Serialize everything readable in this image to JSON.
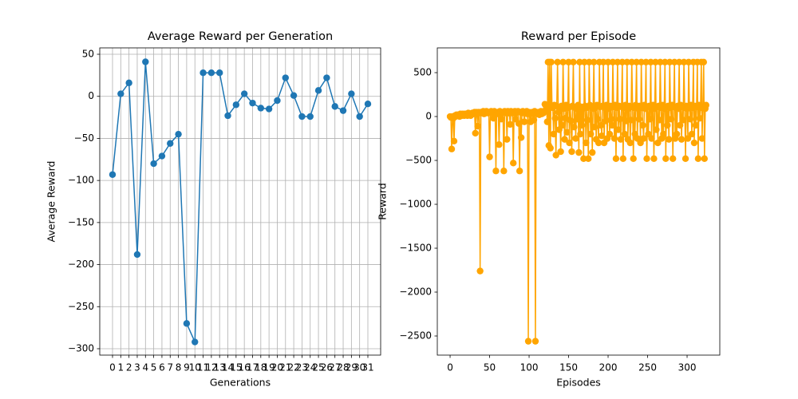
{
  "chart_data": [
    {
      "type": "line",
      "title": "Average Reward per Generation",
      "x_label": "Generations",
      "y_label": "Average Reward",
      "x": [
        0,
        1,
        2,
        3,
        4,
        5,
        6,
        7,
        8,
        9,
        10,
        11,
        12,
        13,
        14,
        15,
        16,
        17,
        18,
        19,
        20,
        21,
        22,
        23,
        24,
        25,
        26,
        27,
        28,
        29,
        30,
        31
      ],
      "values": [
        -93,
        3,
        16,
        -188,
        41,
        -80,
        -71,
        -56,
        -45,
        -270,
        -292,
        28,
        28,
        28,
        -23,
        -10,
        3,
        -8,
        -14,
        -15,
        -5,
        22,
        1,
        -24,
        -24,
        7,
        22,
        -12,
        -17,
        3,
        -24,
        -9
      ],
      "color": "#1f77b4",
      "xlim": [
        -1.55,
        32.55
      ],
      "ylim": [
        -307.6,
        57.6
      ],
      "xticks": [
        0,
        1,
        2,
        3,
        4,
        5,
        6,
        7,
        8,
        9,
        10,
        11,
        12,
        13,
        14,
        15,
        16,
        17,
        18,
        19,
        20,
        21,
        22,
        23,
        24,
        25,
        26,
        27,
        28,
        29,
        30,
        31
      ],
      "yticks": [
        50,
        0,
        {
          "value": -50,
          "label": "−50"
        },
        {
          "value": -100,
          "label": "−100"
        },
        {
          "value": -150,
          "label": "−150"
        },
        {
          "value": -200,
          "label": "−200"
        },
        {
          "value": -250,
          "label": "−250"
        },
        {
          "value": -300,
          "label": "−300"
        }
      ],
      "grid": true
    },
    {
      "type": "line",
      "title": "Reward per Episode",
      "x_label": "Episodes",
      "y_label": "Reward",
      "values": [
        0,
        -10,
        -370,
        0,
        -20,
        -280,
        10,
        0,
        20,
        10,
        20,
        10,
        0,
        30,
        20,
        10,
        30,
        20,
        10,
        30,
        20,
        30,
        10,
        40,
        20,
        30,
        10,
        20,
        40,
        30,
        40,
        50,
        -190,
        50,
        40,
        -110,
        50,
        40,
        -1760,
        50,
        50,
        40,
        60,
        30,
        50,
        40,
        60,
        50,
        40,
        50,
        -460,
        50,
        60,
        40,
        50,
        -20,
        60,
        50,
        -620,
        40,
        50,
        30,
        -320,
        60,
        50,
        -30,
        40,
        50,
        -620,
        60,
        50,
        40,
        -260,
        60,
        40,
        50,
        -90,
        60,
        50,
        40,
        -530,
        50,
        60,
        -30,
        40,
        50,
        60,
        -80,
        -620,
        50,
        -240,
        40,
        60,
        50,
        -60,
        40,
        50,
        60,
        30,
        -2560,
        50,
        40,
        -60,
        30,
        50,
        40,
        -40,
        60,
        -2560,
        50,
        30,
        40,
        50,
        20,
        40,
        60,
        30,
        50,
        40,
        60,
        140,
        130,
        100,
        -60,
        620,
        -330,
        620,
        -360,
        620,
        120,
        100,
        -200,
        130,
        -20,
        -440,
        120,
        620,
        50,
        -150,
        100,
        -400,
        120,
        -100,
        620,
        90,
        -260,
        -20,
        130,
        -180,
        100,
        620,
        -300,
        110,
        -50,
        -400,
        120,
        620,
        -120,
        100,
        -250,
        90,
        -30,
        130,
        -410,
        620,
        -200,
        110,
        -100,
        90,
        -480,
        620,
        120,
        -300,
        100,
        -40,
        -480,
        620,
        130,
        -200,
        110,
        -410,
        90,
        620,
        -120,
        100,
        -260,
        130,
        -30,
        -300,
        620,
        110,
        -100,
        -220,
        120,
        620,
        -300,
        100,
        -50,
        130,
        -250,
        620,
        90,
        -200,
        120,
        -30,
        -100,
        620,
        110,
        -250,
        130,
        -480,
        100,
        620,
        -150,
        120,
        -30,
        -260,
        110,
        620,
        -480,
        100,
        -200,
        130,
        -50,
        620,
        -260,
        90,
        120,
        -300,
        -40,
        620,
        110,
        -480,
        100,
        -200,
        130,
        620,
        -250,
        90,
        -30,
        120,
        -300,
        620,
        100,
        -100,
        -250,
        130,
        90,
        620,
        -480,
        110,
        -200,
        120,
        -30,
        620,
        -250,
        100,
        130,
        -480,
        90,
        620,
        -150,
        110,
        -300,
        120,
        -40,
        620,
        100,
        -250,
        130,
        -200,
        90,
        620,
        -480,
        110,
        -100,
        120,
        -260,
        620,
        100,
        -30,
        130,
        -480,
        110,
        620,
        -250,
        100,
        -200,
        120,
        90,
        620,
        -100,
        130,
        -260,
        110,
        -40,
        620,
        100,
        -480,
        120,
        90,
        -250,
        620,
        110,
        -30,
        130,
        -200,
        100,
        620,
        -300,
        120,
        -100,
        110,
        620,
        -480,
        130,
        -20,
        100,
        620,
        -250,
        110,
        620,
        -480,
        90,
        130
      ],
      "color": "#ffa500",
      "xlim": [
        -16.2,
        341.4
      ],
      "ylim": [
        -2718,
        782
      ],
      "xticks": [
        0,
        50,
        100,
        150,
        200,
        250,
        300
      ],
      "yticks": [
        500,
        0,
        {
          "value": -500,
          "label": "−500"
        },
        {
          "value": -1000,
          "label": "−1000"
        },
        {
          "value": -1500,
          "label": "−1500"
        },
        {
          "value": -2000,
          "label": "−2000"
        },
        {
          "value": -2500,
          "label": "−2500"
        }
      ],
      "grid": false
    }
  ]
}
